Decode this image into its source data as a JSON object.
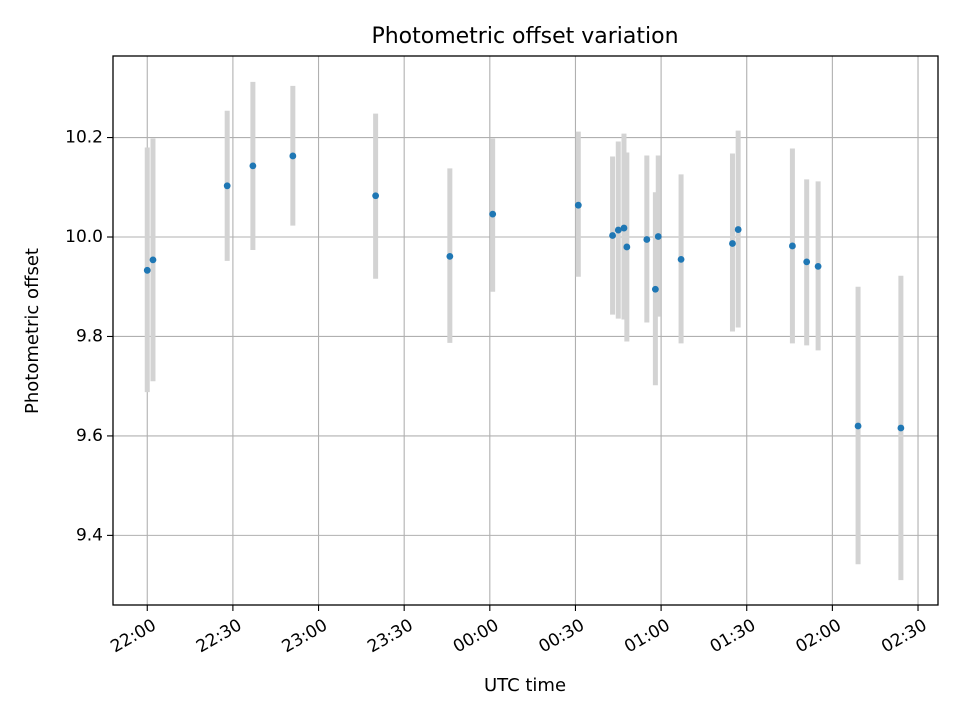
{
  "chart_data": {
    "type": "scatter",
    "title": "Photometric offset variation",
    "xlabel": "UTC time",
    "ylabel": "Photometric offset",
    "x_axis": {
      "type": "time",
      "range": [
        "21:48",
        "02:37"
      ],
      "ticks": [
        "22:00",
        "22:30",
        "23:00",
        "23:30",
        "00:00",
        "00:30",
        "01:00",
        "01:30",
        "02:00",
        "02:30"
      ]
    },
    "y_axis": {
      "range": [
        9.26,
        10.364
      ],
      "ticks": [
        "9.4",
        "9.6",
        "9.8",
        "10.0",
        "10.2"
      ]
    },
    "grid": true,
    "colors": {
      "point": "#1f77b4",
      "errorbar": "#d3d3d3",
      "grid": "#b0b0b0"
    },
    "points": [
      {
        "time": "22:00",
        "y": 9.933,
        "ylow": 9.688,
        "yhigh": 10.18
      },
      {
        "time": "22:02",
        "y": 9.954,
        "ylow": 9.71,
        "yhigh": 10.198
      },
      {
        "time": "22:28",
        "y": 10.103,
        "ylow": 9.952,
        "yhigh": 10.254
      },
      {
        "time": "22:37",
        "y": 10.143,
        "ylow": 9.974,
        "yhigh": 10.312
      },
      {
        "time": "22:51",
        "y": 10.163,
        "ylow": 10.023,
        "yhigh": 10.304
      },
      {
        "time": "23:20",
        "y": 10.083,
        "ylow": 9.916,
        "yhigh": 10.248
      },
      {
        "time": "23:46",
        "y": 9.961,
        "ylow": 9.787,
        "yhigh": 10.138
      },
      {
        "time": "00:01",
        "y": 10.046,
        "ylow": 9.89,
        "yhigh": 10.198
      },
      {
        "time": "00:31",
        "y": 10.064,
        "ylow": 9.92,
        "yhigh": 10.212
      },
      {
        "time": "00:43",
        "y": 10.003,
        "ylow": 9.844,
        "yhigh": 10.162
      },
      {
        "time": "00:45",
        "y": 10.014,
        "ylow": 9.836,
        "yhigh": 10.192
      },
      {
        "time": "00:47",
        "y": 10.018,
        "ylow": 9.834,
        "yhigh": 10.208
      },
      {
        "time": "00:48",
        "y": 9.98,
        "ylow": 9.79,
        "yhigh": 10.17
      },
      {
        "time": "00:55",
        "y": 9.995,
        "ylow": 9.828,
        "yhigh": 10.164
      },
      {
        "time": "00:58",
        "y": 9.895,
        "ylow": 9.702,
        "yhigh": 10.09
      },
      {
        "time": "00:59",
        "y": 10.001,
        "ylow": 9.84,
        "yhigh": 10.164
      },
      {
        "time": "01:07",
        "y": 9.955,
        "ylow": 9.786,
        "yhigh": 10.126
      },
      {
        "time": "01:25",
        "y": 9.987,
        "ylow": 9.81,
        "yhigh": 10.168
      },
      {
        "time": "01:27",
        "y": 10.015,
        "ylow": 9.818,
        "yhigh": 10.214
      },
      {
        "time": "01:46",
        "y": 9.982,
        "ylow": 9.786,
        "yhigh": 10.178
      },
      {
        "time": "01:51",
        "y": 9.95,
        "ylow": 9.782,
        "yhigh": 10.116
      },
      {
        "time": "01:55",
        "y": 9.941,
        "ylow": 9.772,
        "yhigh": 10.112
      },
      {
        "time": "02:09",
        "y": 9.62,
        "ylow": 9.342,
        "yhigh": 9.9
      },
      {
        "time": "02:24",
        "y": 9.616,
        "ylow": 9.31,
        "yhigh": 9.922
      }
    ]
  }
}
